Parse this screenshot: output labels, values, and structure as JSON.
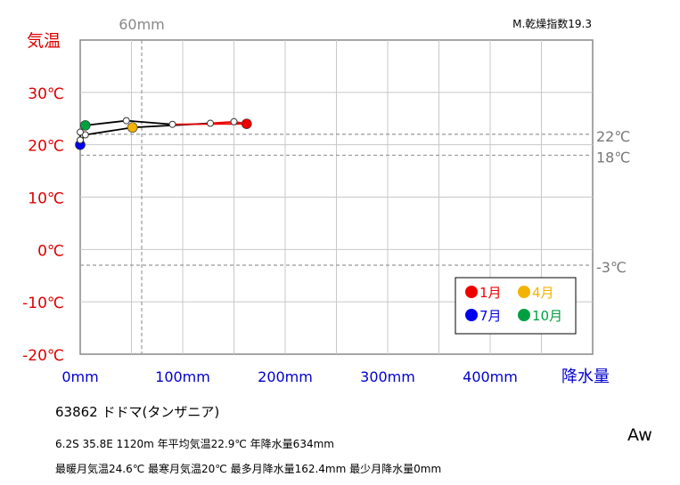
{
  "chart_data": {
    "type": "line",
    "title": "",
    "xlabel": "降水量",
    "ylabel": "気温",
    "xlim": [
      0,
      500
    ],
    "ylim": [
      -20,
      40
    ],
    "x_ticks": [
      "0mm",
      "100mm",
      "200mm",
      "300mm",
      "400mm"
    ],
    "y_ticks": [
      "30℃",
      "20℃",
      "10℃",
      "0℃",
      "-10℃",
      "-20℃"
    ],
    "grid": true,
    "series": [
      {
        "months": [
          1,
          2,
          3,
          4,
          5,
          6,
          7,
          8,
          9,
          10,
          11,
          12
        ],
        "precipitation_mm": [
          162.4,
          150,
          127,
          51,
          5,
          0,
          0,
          0,
          0,
          5,
          45,
          90
        ],
        "temperature_c": [
          24.0,
          24.4,
          24.1,
          23.3,
          21.9,
          20.6,
          20.0,
          20.9,
          22.4,
          23.7,
          24.6,
          23.9
        ]
      }
    ],
    "reference_lines": {
      "vertical": {
        "value_mm": 60,
        "label": "60mm"
      },
      "horizontal": [
        {
          "value_c": 22,
          "label": "22℃"
        },
        {
          "value_c": 18,
          "label": "18℃"
        },
        {
          "value_c": -3,
          "label": "-3℃"
        }
      ]
    },
    "highlights": [
      {
        "month": 1,
        "label": "1月",
        "color": "#ee0000"
      },
      {
        "month": 4,
        "label": "4月",
        "color": "#f2b400"
      },
      {
        "month": 7,
        "label": "7月",
        "color": "#0000ee"
      },
      {
        "month": 10,
        "label": "10月",
        "color": "#00a040"
      }
    ],
    "legend_position": "bottom-right",
    "line_colors": {
      "default": "#000000",
      "wet_segment": "#ee0000"
    }
  },
  "aridity_index": "M.乾燥指数19.3",
  "climate_class": "Aw",
  "station": {
    "name_line": "63862  ドドマ(タンザニア)",
    "line1": "6.2S  35.8E 1120m  年平均気温22.9℃ 年降水量634mm",
    "line2": "最暖月気温24.6℃ 最寒月気温20℃ 最多月降水量162.4mm 最少月降水量0mm"
  }
}
